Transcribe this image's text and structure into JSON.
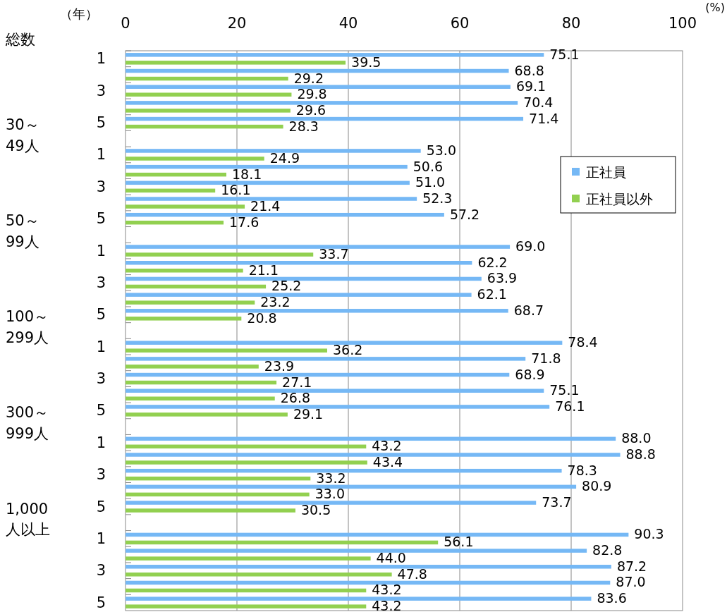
{
  "chart_data": {
    "type": "bar",
    "orientation": "horizontal",
    "xlabel": "(%)",
    "ylabel": "（年）",
    "categories": [
      "1",
      null,
      "3",
      null,
      "5",
      null,
      "1",
      null,
      "3",
      null,
      "5",
      null,
      "1",
      null,
      "3",
      null,
      "5",
      null,
      "1",
      null,
      "3",
      null,
      "5",
      null,
      "1",
      null,
      "3",
      null,
      "5",
      null,
      "1",
      null,
      "3",
      null,
      "5"
    ],
    "series": [
      {
        "name": "正社員",
        "color": "#75b8f5",
        "values": [
          75.1,
          68.8,
          69.1,
          70.4,
          71.4,
          null,
          53.0,
          50.6,
          51.0,
          52.3,
          57.2,
          null,
          69.0,
          62.2,
          63.9,
          62.1,
          68.7,
          null,
          78.4,
          71.8,
          68.9,
          75.1,
          76.1,
          null,
          88.0,
          88.8,
          78.3,
          80.9,
          73.7,
          null,
          90.3,
          82.8,
          87.2,
          87.0,
          83.6
        ],
        "value_labels": [
          "75.1",
          "68.8",
          "69.1",
          "70.4",
          "71.4",
          null,
          "53.0",
          "50.6",
          "51.0",
          "52.3",
          "57.2",
          null,
          "69.0",
          "62.2",
          "63.9",
          "62.1",
          "68.7",
          null,
          "78.4",
          "71.8",
          "68.9",
          "75.1",
          "76.1",
          null,
          "88.0",
          "88.8",
          "78.3",
          "80.9",
          "73.7",
          null,
          "90.3",
          "82.8",
          "87.2",
          "87.0",
          "83.6"
        ]
      },
      {
        "name": "正社員以外",
        "color": "#92d050",
        "values": [
          39.5,
          29.2,
          29.8,
          29.6,
          28.3,
          null,
          24.9,
          18.1,
          16.1,
          21.4,
          17.6,
          null,
          33.7,
          21.1,
          25.2,
          23.2,
          20.8,
          null,
          36.2,
          23.9,
          27.1,
          26.8,
          29.1,
          null,
          43.2,
          43.4,
          33.2,
          33.0,
          30.5,
          null,
          56.1,
          44.0,
          47.8,
          43.2,
          43.2
        ],
        "value_labels": [
          "39.5",
          "29.2",
          "29.8",
          "29.6",
          "28.3",
          null,
          "24.9",
          "18.1",
          "16.1",
          "21.4",
          "17.6",
          null,
          "33.7",
          "21.1",
          "25.2",
          "23.2",
          "20.8",
          null,
          "36.2",
          "23.9",
          "27.1",
          "26.8",
          "29.1",
          null,
          "43.2",
          "43.4",
          "33.2",
          "33.0",
          "30.5",
          null,
          "56.1",
          "44.0",
          "47.8",
          "43.2",
          "43.2"
        ]
      }
    ],
    "xlim": [
      0,
      100
    ],
    "xticks": [
      0,
      20,
      40,
      60,
      80,
      100
    ],
    "grid": "x",
    "legend": "right",
    "annotations": [
      "総数",
      "30～49人",
      "50～99人",
      "100～299人",
      "300～999人",
      "1,000人以上"
    ]
  }
}
